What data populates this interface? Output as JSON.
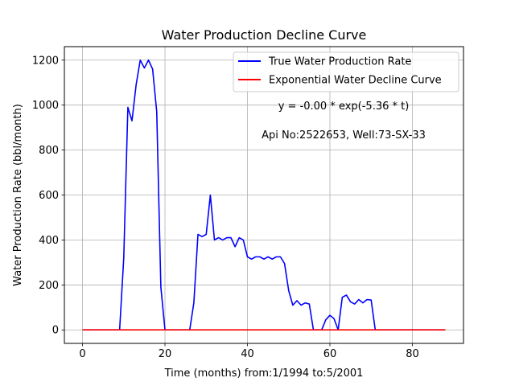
{
  "chart_data": {
    "type": "line",
    "title": "Water Production Decline Curve",
    "xlabel": "Time (months) from:1/1994 to:5/2001",
    "ylabel": "Water Production Rate (bbl/month)",
    "xlim": [
      -4.4,
      92.4
    ],
    "ylim": [
      -60,
      1260
    ],
    "xticks": [
      0,
      20,
      40,
      60,
      80
    ],
    "yticks": [
      0,
      200,
      400,
      600,
      800,
      1000,
      1200
    ],
    "grid": true,
    "legend_position": "top-right",
    "annotations": {
      "equation": "y = -0.00 * exp(-5.36 * t)",
      "well_info": "Api No:2522653, Well:73-SX-33"
    },
    "series": [
      {
        "name": "True Water Production Rate",
        "color": "#0000ff",
        "x": [
          0,
          1,
          2,
          3,
          4,
          5,
          6,
          7,
          8,
          9,
          10,
          11,
          12,
          13,
          14,
          15,
          16,
          17,
          18,
          19,
          20,
          21,
          22,
          23,
          24,
          25,
          26,
          27,
          28,
          29,
          30,
          31,
          32,
          33,
          34,
          35,
          36,
          37,
          38,
          39,
          40,
          41,
          42,
          43,
          44,
          45,
          46,
          47,
          48,
          49,
          50,
          51,
          52,
          53,
          54,
          55,
          56,
          57,
          58,
          59,
          60,
          61,
          62,
          63,
          64,
          65,
          66,
          67,
          68,
          69,
          70,
          71,
          72,
          73,
          74,
          75,
          76,
          77,
          78,
          79,
          80,
          81,
          82,
          83,
          84,
          85,
          86,
          87,
          88
        ],
        "y": [
          0,
          0,
          0,
          0,
          0,
          0,
          0,
          0,
          0,
          0,
          320,
          990,
          930,
          1090,
          1200,
          1165,
          1200,
          1160,
          970,
          190,
          0,
          0,
          0,
          0,
          0,
          0,
          0,
          120,
          425,
          415,
          425,
          600,
          400,
          410,
          400,
          410,
          410,
          370,
          410,
          400,
          325,
          315,
          325,
          325,
          315,
          325,
          315,
          325,
          325,
          295,
          175,
          110,
          130,
          110,
          120,
          115,
          0,
          0,
          0,
          45,
          65,
          50,
          0,
          145,
          155,
          125,
          115,
          135,
          120,
          135,
          133,
          0,
          0,
          0,
          0,
          0,
          0,
          0,
          0,
          0,
          0,
          0,
          0,
          0,
          0,
          0,
          0,
          0,
          0
        ]
      },
      {
        "name": "Exponential Water Decline Curve",
        "color": "#ff0000",
        "x": [
          0,
          88
        ],
        "y": [
          0,
          0
        ]
      }
    ]
  }
}
